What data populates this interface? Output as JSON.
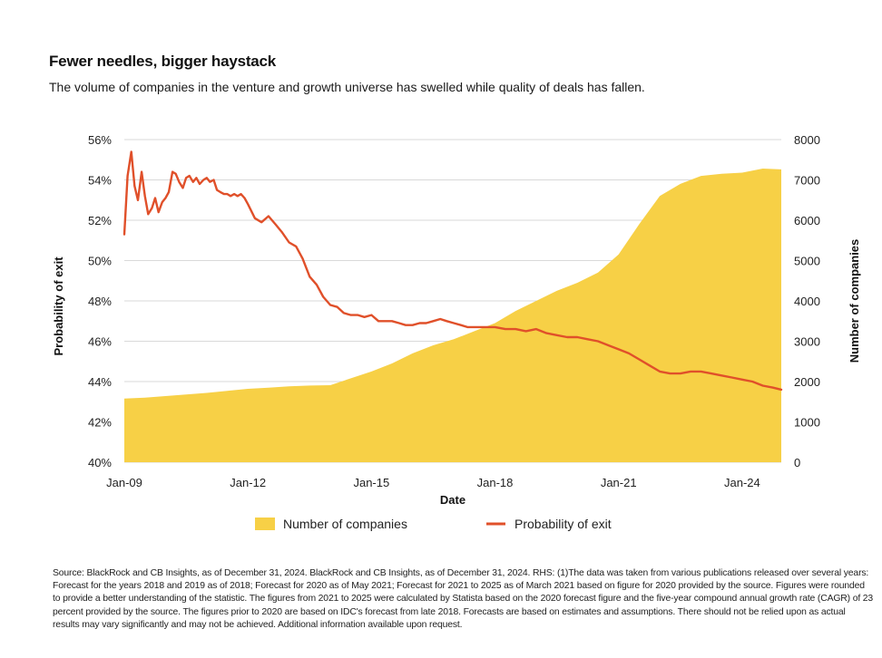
{
  "title": "Fewer needles, bigger haystack",
  "subtitle": "The volume of companies in the venture and growth universe has swelled while quality of deals has fallen.",
  "footnote": "Source: BlackRock and CB Insights, as of December 31, 2024. BlackRock and CB Insights, as of December 31, 2024. RHS: (1)The data was taken from various publications released over several years: Forecast for the years 2018 and 2019 as of 2018; Forecast for 2020 as of May 2021; Forecast for 2021 to 2025 as of March 2021 based on figure for 2020 provided by the source. Figures were rounded to provide a better understanding of the statistic. The figures from 2021 to 2025 were calculated by Statista based on the 2020 forecast figure and the five-year compound annual growth rate (CAGR) of 23 percent provided by the source. The figures prior to 2020 are based on IDC's forecast from late 2018. Forecasts are based on estimates and assumptions. There should not be relied upon as actual results may vary significantly and may not be achieved. Additional information available upon request.",
  "colors": {
    "area": "#F7D046",
    "line": "#E0502A",
    "grid": "#D9D9D9"
  },
  "chart_data": {
    "type": "area+line",
    "xlabel": "Date",
    "ylabel_left": "Probability of exit",
    "ylabel_right": "Number of companies",
    "x_ticks": [
      "Jan-09",
      "Jan-12",
      "Jan-15",
      "Jan-18",
      "Jan-21",
      "Jan-24"
    ],
    "x_tick_positions": [
      2009,
      2012,
      2015,
      2018,
      2021,
      2024
    ],
    "xlim": [
      2009,
      2024.95
    ],
    "y_left_ticks": [
      "40%",
      "42%",
      "44%",
      "46%",
      "48%",
      "50%",
      "52%",
      "54%",
      "56%"
    ],
    "ylim_left": [
      40,
      56
    ],
    "y_right_ticks": [
      "0",
      "1000",
      "2000",
      "3000",
      "4000",
      "5000",
      "6000",
      "7000",
      "8000"
    ],
    "ylim_right": [
      0,
      8000
    ],
    "grid": true,
    "legend": [
      "Number of companies",
      "Probability of exit"
    ],
    "series": [
      {
        "name": "Number of companies",
        "axis": "right",
        "type": "area",
        "x": [
          2009,
          2009.5,
          2010,
          2010.5,
          2011,
          2011.5,
          2012,
          2012.5,
          2013,
          2013.5,
          2014,
          2014.5,
          2015,
          2015.5,
          2016,
          2016.5,
          2017,
          2017.5,
          2018,
          2018.5,
          2019,
          2019.5,
          2020,
          2020.5,
          2021,
          2021.5,
          2022,
          2022.5,
          2023,
          2023.5,
          2024,
          2024.5,
          2024.95
        ],
        "values": [
          1580,
          1600,
          1640,
          1680,
          1720,
          1770,
          1820,
          1850,
          1880,
          1900,
          1910,
          2080,
          2250,
          2450,
          2700,
          2900,
          3050,
          3250,
          3450,
          3750,
          4000,
          4250,
          4450,
          4700,
          5150,
          5900,
          6600,
          6900,
          7100,
          7150,
          7180,
          7280,
          7260
        ]
      },
      {
        "name": "Probability of exit",
        "axis": "left",
        "type": "line",
        "x": [
          2009,
          2009.08,
          2009.17,
          2009.25,
          2009.33,
          2009.42,
          2009.5,
          2009.58,
          2009.67,
          2009.75,
          2009.83,
          2009.92,
          2010,
          2010.08,
          2010.17,
          2010.25,
          2010.33,
          2010.42,
          2010.5,
          2010.58,
          2010.67,
          2010.75,
          2010.83,
          2010.92,
          2011,
          2011.08,
          2011.17,
          2011.25,
          2011.33,
          2011.42,
          2011.5,
          2011.58,
          2011.67,
          2011.75,
          2011.83,
          2011.92,
          2012,
          2012.17,
          2012.33,
          2012.5,
          2012.67,
          2012.83,
          2013,
          2013.17,
          2013.33,
          2013.5,
          2013.67,
          2013.83,
          2014,
          2014.17,
          2014.33,
          2014.5,
          2014.67,
          2014.83,
          2015,
          2015.17,
          2015.33,
          2015.5,
          2015.67,
          2015.83,
          2016,
          2016.17,
          2016.33,
          2016.5,
          2016.67,
          2016.83,
          2017,
          2017.17,
          2017.33,
          2017.5,
          2017.67,
          2017.83,
          2018,
          2018.25,
          2018.5,
          2018.75,
          2019,
          2019.25,
          2019.5,
          2019.75,
          2020,
          2020.25,
          2020.5,
          2020.75,
          2021,
          2021.25,
          2021.5,
          2021.75,
          2022,
          2022.25,
          2022.5,
          2022.75,
          2023,
          2023.25,
          2023.5,
          2023.75,
          2024,
          2024.25,
          2024.5,
          2024.75,
          2024.95
        ],
        "values": [
          51.3,
          54.2,
          55.4,
          53.7,
          53.0,
          54.4,
          53.2,
          52.3,
          52.6,
          53.1,
          52.4,
          52.9,
          53.1,
          53.4,
          54.4,
          54.3,
          53.9,
          53.6,
          54.1,
          54.2,
          53.9,
          54.1,
          53.8,
          54.0,
          54.1,
          53.9,
          54.0,
          53.5,
          53.4,
          53.3,
          53.3,
          53.2,
          53.3,
          53.2,
          53.3,
          53.1,
          52.8,
          52.1,
          51.9,
          52.2,
          51.8,
          51.4,
          50.9,
          50.7,
          50.1,
          49.2,
          48.8,
          48.2,
          47.8,
          47.7,
          47.4,
          47.3,
          47.3,
          47.2,
          47.3,
          47.0,
          47.0,
          47.0,
          46.9,
          46.8,
          46.8,
          46.9,
          46.9,
          47.0,
          47.1,
          47.0,
          46.9,
          46.8,
          46.7,
          46.7,
          46.7,
          46.7,
          46.7,
          46.6,
          46.6,
          46.5,
          46.6,
          46.4,
          46.3,
          46.2,
          46.2,
          46.1,
          46.0,
          45.8,
          45.6,
          45.4,
          45.1,
          44.8,
          44.5,
          44.4,
          44.4,
          44.5,
          44.5,
          44.4,
          44.3,
          44.2,
          44.1,
          44.0,
          43.8,
          43.7,
          43.6
        ]
      }
    ]
  }
}
